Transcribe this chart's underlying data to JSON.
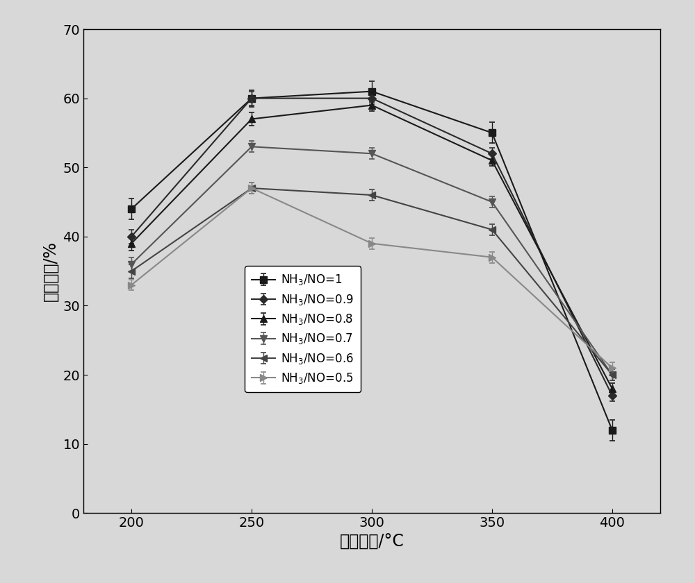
{
  "x": [
    200,
    250,
    300,
    350,
    400
  ],
  "series": [
    {
      "label": "NH$_3$/NO=1",
      "values": [
        44,
        60,
        61,
        55,
        12
      ],
      "errors": [
        1.5,
        1.2,
        1.5,
        1.5,
        1.5
      ],
      "color": "#1a1a1a",
      "marker": "s",
      "linestyle": "-",
      "markersize": 7
    },
    {
      "label": "NH$_3$/NO=0.9",
      "values": [
        40,
        60,
        60,
        52,
        17
      ],
      "errors": [
        1.0,
        1.0,
        0.8,
        0.8,
        0.8
      ],
      "color": "#2a2a2a",
      "marker": "D",
      "linestyle": "-",
      "markersize": 6
    },
    {
      "label": "NH$_3$/NO=0.8",
      "values": [
        39,
        57,
        59,
        51,
        18
      ],
      "errors": [
        1.0,
        1.0,
        0.8,
        0.8,
        0.8
      ],
      "color": "#1a1a1a",
      "marker": "^",
      "linestyle": "-",
      "markersize": 7
    },
    {
      "label": "NH$_3$/NO=0.7",
      "values": [
        36,
        53,
        52,
        45,
        20
      ],
      "errors": [
        1.0,
        0.8,
        0.8,
        0.8,
        0.8
      ],
      "color": "#555555",
      "marker": "v",
      "linestyle": "-",
      "markersize": 7
    },
    {
      "label": "NH$_3$/NO=0.6",
      "values": [
        35,
        47,
        46,
        41,
        20
      ],
      "errors": [
        1.0,
        0.8,
        0.8,
        0.8,
        0.8
      ],
      "color": "#444444",
      "marker": "<",
      "linestyle": "-",
      "markersize": 7
    },
    {
      "label": "NH$_3$/NO=0.5",
      "values": [
        33,
        47,
        39,
        37,
        21
      ],
      "errors": [
        0.8,
        0.8,
        0.8,
        0.8,
        0.8
      ],
      "color": "#888888",
      "marker": ">",
      "linestyle": "-",
      "markersize": 7
    }
  ],
  "xlabel": "反应温度/°C",
  "ylabel": "脱硕效率/%",
  "ylim": [
    0,
    70
  ],
  "xlim": [
    180,
    420
  ],
  "xticks": [
    200,
    250,
    300,
    350,
    400
  ],
  "yticks": [
    0,
    10,
    20,
    30,
    40,
    50,
    60,
    70
  ],
  "background_color": "#d8d8d8",
  "figure_color": "#d8d8d8",
  "fontsize_axis": 17,
  "fontsize_tick": 14,
  "fontsize_legend": 12
}
